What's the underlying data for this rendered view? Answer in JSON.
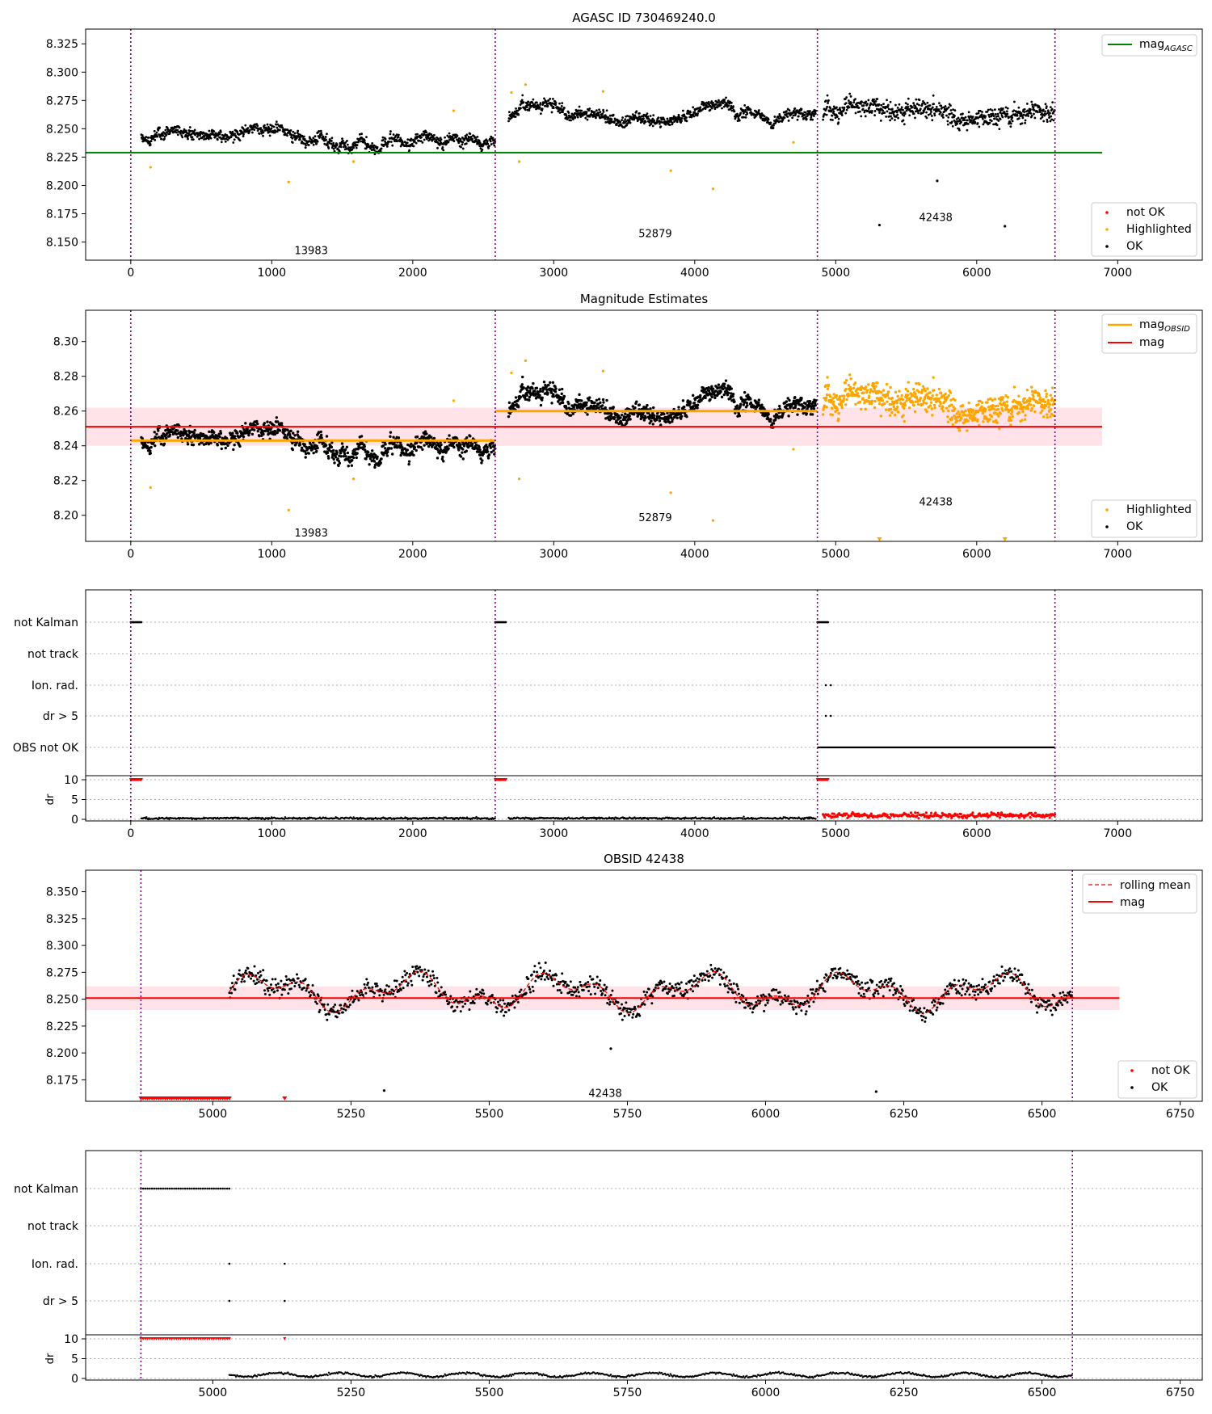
{
  "colors": {
    "ok": "#000000",
    "highlighted": "#ffa500",
    "not_ok": "#ff0000",
    "agasc_line": "#008000",
    "mag_line": "#ff0000",
    "obsid_line": "#ffa500",
    "obs_separator": "#800080",
    "band": "#ffc0cb"
  },
  "chart_data": [
    {
      "id": "agasc",
      "type": "scatter",
      "title": "AGASC ID 730469240.0",
      "xlim": [
        -320,
        7600
      ],
      "ylim": [
        8.134,
        8.338
      ],
      "xticks": [
        0,
        1000,
        2000,
        3000,
        4000,
        5000,
        6000,
        7000
      ],
      "yticks": [
        8.15,
        8.175,
        8.2,
        8.225,
        8.25,
        8.275,
        8.3,
        8.325
      ],
      "ytick_labels": [
        "8.150",
        "8.175",
        "8.200",
        "8.225",
        "8.250",
        "8.275",
        "8.300",
        "8.325"
      ],
      "vlines": [
        0,
        2585,
        4870,
        6555
      ],
      "hlines": [
        {
          "y": 8.229,
          "x": [
            -320,
            6890
          ],
          "color": "agasc",
          "name": "magAGASC"
        }
      ],
      "segments": [
        {
          "label": "13983",
          "x": [
            75,
            2585
          ],
          "base": 8.245,
          "base_end": 8.238,
          "spread": 0.006,
          "label_x": 1280,
          "label_y": 8.143
        },
        {
          "label": "52879",
          "x": [
            2680,
            4860
          ],
          "base": 8.262,
          "base_end": 8.26,
          "spread": 0.006,
          "label_x": 3720,
          "label_y": 8.158
        },
        {
          "label": "42438",
          "x": [
            4910,
            6555
          ],
          "base": 8.264,
          "base_end": 8.262,
          "spread": 0.011,
          "label_x": 5710,
          "label_y": 8.172
        }
      ],
      "highlighted_points": [
        [
          140,
          8.216
        ],
        [
          1120,
          8.203
        ],
        [
          1580,
          8.221
        ],
        [
          2290,
          8.266
        ],
        [
          2700,
          8.282
        ],
        [
          2755,
          8.221
        ],
        [
          2800,
          8.289
        ],
        [
          3350,
          8.283
        ],
        [
          3830,
          8.213
        ],
        [
          4130,
          8.197
        ],
        [
          4700,
          8.238
        ]
      ],
      "outliers": [
        [
          5310,
          8.165
        ],
        [
          5720,
          8.204
        ],
        [
          6200,
          8.164
        ]
      ],
      "legend": {
        "line_entries": [
          "magAGASC"
        ],
        "marker_entries": [
          "not OK",
          "Highlighted",
          "OK"
        ]
      }
    },
    {
      "id": "estimates",
      "type": "scatter",
      "title": "Magnitude Estimates",
      "xlim": [
        -320,
        7600
      ],
      "ylim": [
        8.185,
        8.318
      ],
      "xticks": [
        0,
        1000,
        2000,
        3000,
        4000,
        5000,
        6000,
        7000
      ],
      "yticks": [
        8.2,
        8.22,
        8.24,
        8.26,
        8.28,
        8.3
      ],
      "ytick_labels": [
        "8.20",
        "8.22",
        "8.24",
        "8.26",
        "8.28",
        "8.30"
      ],
      "vlines": [
        0,
        2585,
        4870,
        6555
      ],
      "mag": 8.251,
      "band": [
        8.24,
        8.262
      ],
      "obsid_means": [
        {
          "x": [
            0,
            2585
          ],
          "y": 8.243
        },
        {
          "x": [
            2585,
            4870
          ],
          "y": 8.26
        }
      ],
      "legend": {
        "line_entries": [
          "magOBSID",
          "mag"
        ],
        "marker_entries": [
          "Highlighted",
          "OK"
        ]
      }
    },
    {
      "id": "flags",
      "type": "scatter",
      "flag_rows": [
        "not Kalman",
        "not track",
        "Ion. rad.",
        "dr > 5",
        "OBS not OK"
      ],
      "dr_ylim": [
        0,
        10
      ],
      "dr_yticks": [
        0,
        5,
        10
      ],
      "dr_label": "dr",
      "xlim": [
        -320,
        7600
      ],
      "xticks": [
        0,
        1000,
        2000,
        3000,
        4000,
        5000,
        6000,
        7000
      ],
      "vlines": [
        0,
        2585,
        4870,
        6555
      ]
    },
    {
      "id": "obsid",
      "type": "line",
      "title": "OBSID 42438",
      "xlim": [
        4770,
        6790
      ],
      "ylim": [
        8.155,
        8.37
      ],
      "xticks": [
        5000,
        5250,
        5500,
        5750,
        6000,
        6250,
        6500,
        6750
      ],
      "yticks": [
        8.175,
        8.2,
        8.225,
        8.25,
        8.275,
        8.3,
        8.325,
        8.35
      ],
      "ytick_labels": [
        "8.175",
        "8.200",
        "8.225",
        "8.250",
        "8.275",
        "8.300",
        "8.325",
        "8.350"
      ],
      "vlines": [
        4870,
        6555
      ],
      "mag": 8.251,
      "band": [
        8.24,
        8.262
      ],
      "label": "42438",
      "legend": {
        "line_entries": [
          "rolling mean",
          "mag"
        ],
        "marker_entries": [
          "not OK",
          "OK"
        ]
      }
    },
    {
      "id": "obsid_flags",
      "type": "scatter",
      "flag_rows": [
        "not Kalman",
        "not track",
        "Ion. rad.",
        "dr > 5"
      ],
      "dr_ylim": [
        0,
        10
      ],
      "dr_yticks": [
        0,
        5,
        10
      ],
      "dr_label": "dr",
      "xlim": [
        4770,
        6790
      ],
      "xticks": [
        5000,
        5250,
        5500,
        5750,
        6000,
        6250,
        6500,
        6750
      ],
      "vlines": [
        4870,
        6555
      ]
    }
  ]
}
